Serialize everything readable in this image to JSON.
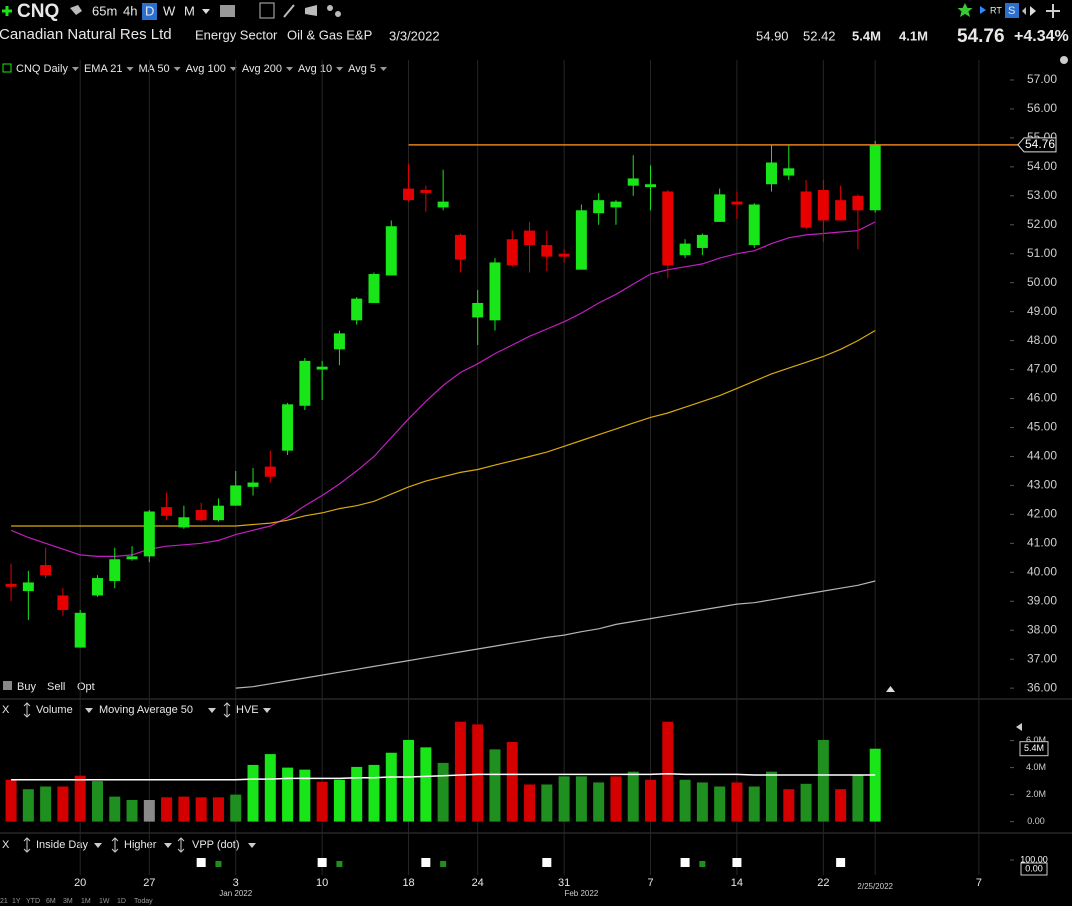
{
  "toolbar": {
    "symbol": "CNQ",
    "intervals": [
      "65m",
      "4h",
      "D",
      "W",
      "M"
    ],
    "rt": "RT",
    "s": "S"
  },
  "header": {
    "company": "Canadian Natural Res Ltd",
    "sector": "Energy Sector",
    "industry": "Oil & Gas E&P",
    "date": "3/3/2022",
    "high": "54.90",
    "low": "52.42",
    "volume": "5.4M",
    "avg_volume": "4.1M",
    "last": "54.76",
    "change": "+4.34%"
  },
  "trade_buttons": [
    "Buy",
    "Sell",
    "Opt"
  ],
  "ranges": [
    "21",
    "1Y",
    "YTD",
    "6M",
    "3M",
    "1M",
    "1W",
    "1D",
    "Today"
  ],
  "chart_data": [
    {
      "type": "candlestick",
      "name": "CNQ Daily",
      "up_color": "#19e619",
      "down_color": "#e60000",
      "grid": "x",
      "xlim": [
        -0.64,
        57.8
      ],
      "xticks": [
        {
          "value": 4,
          "label": "20"
        },
        {
          "value": 8,
          "label": "27"
        },
        {
          "value": 13,
          "label": "3"
        },
        {
          "value": 18,
          "label": "10"
        },
        {
          "value": 23,
          "label": "18"
        },
        {
          "value": 27,
          "label": "24"
        },
        {
          "value": 32,
          "label": "31"
        },
        {
          "value": 37,
          "label": "7"
        },
        {
          "value": 42,
          "label": "14"
        },
        {
          "value": 47,
          "label": "22"
        },
        {
          "value": 50,
          "label": "2/25/2022"
        },
        {
          "value": 56,
          "label": "7"
        }
      ],
      "month_labels": [
        {
          "value": 13,
          "label": "Jan 2022"
        },
        {
          "value": 33,
          "label": "Feb 2022"
        }
      ],
      "ylim": [
        35.59,
        57.69
      ],
      "yticks": [
        {
          "value": 36,
          "label": "36.00"
        },
        {
          "value": 37,
          "label": "37.00"
        },
        {
          "value": 38,
          "label": "38.00"
        },
        {
          "value": 39,
          "label": "39.00"
        },
        {
          "value": 40,
          "label": "40.00"
        },
        {
          "value": 41,
          "label": "41.00"
        },
        {
          "value": 42,
          "label": "42.00"
        },
        {
          "value": 43,
          "label": "43.00"
        },
        {
          "value": 44,
          "label": "44.00"
        },
        {
          "value": 45,
          "label": "45.00"
        },
        {
          "value": 46,
          "label": "46.00"
        },
        {
          "value": 47,
          "label": "47.00"
        },
        {
          "value": 48,
          "label": "48.00"
        },
        {
          "value": 49,
          "label": "49.00"
        },
        {
          "value": 50,
          "label": "50.00"
        },
        {
          "value": 51,
          "label": "51.00"
        },
        {
          "value": 52,
          "label": "52.00"
        },
        {
          "value": 53,
          "label": "53.00"
        },
        {
          "value": 54,
          "label": "54.00"
        },
        {
          "value": 55,
          "label": "55.00"
        },
        {
          "value": 56,
          "label": "56.00"
        },
        {
          "value": 57,
          "label": "57.00"
        }
      ],
      "open": [
        39.6,
        39.35,
        40.25,
        39.2,
        37.4,
        39.2,
        39.7,
        40.45,
        40.55,
        42.25,
        41.55,
        42.15,
        41.8,
        42.3,
        42.95,
        43.65,
        44.2,
        45.75,
        47.0,
        47.7,
        48.7,
        49.3,
        50.25,
        53.25,
        53.2,
        52.6,
        51.65,
        48.8,
        48.7,
        51.5,
        51.8,
        51.3,
        51.0,
        50.45,
        52.4,
        52.6,
        53.35,
        53.3,
        53.15,
        50.95,
        51.2,
        52.1,
        52.8,
        51.3,
        53.4,
        53.7,
        53.15,
        53.2,
        52.85,
        53.0,
        52.5
      ],
      "high": [
        40.3,
        40.05,
        40.85,
        39.45,
        38.7,
        39.9,
        40.85,
        40.9,
        42.15,
        42.75,
        42.3,
        42.4,
        42.55,
        43.5,
        43.6,
        44.2,
        45.85,
        47.4,
        47.3,
        48.35,
        49.5,
        50.35,
        52.15,
        54.1,
        53.35,
        53.9,
        51.7,
        49.75,
        50.85,
        51.8,
        52.1,
        51.8,
        51.15,
        52.7,
        53.1,
        52.85,
        54.4,
        54.05,
        53.2,
        51.5,
        51.7,
        53.25,
        53.15,
        52.75,
        54.75,
        54.75,
        53.55,
        53.55,
        53.35,
        53.05,
        54.9
      ],
      "low": [
        39.0,
        38.35,
        39.8,
        38.5,
        37.4,
        39.15,
        39.45,
        40.4,
        40.35,
        41.8,
        41.5,
        41.75,
        41.75,
        42.3,
        42.65,
        43.1,
        44.05,
        45.6,
        45.95,
        47.15,
        48.55,
        49.3,
        50.25,
        52.8,
        52.45,
        52.5,
        50.35,
        47.85,
        48.35,
        50.55,
        50.35,
        50.4,
        50.7,
        50.45,
        52.0,
        52.0,
        53.0,
        52.5,
        50.15,
        50.85,
        50.95,
        52.1,
        52.2,
        51.2,
        53.15,
        53.55,
        51.85,
        51.4,
        52.15,
        51.15,
        52.42
      ],
      "close": [
        39.5,
        39.65,
        39.9,
        38.7,
        38.6,
        39.8,
        40.45,
        40.55,
        42.1,
        41.95,
        41.9,
        41.8,
        42.3,
        43.0,
        43.1,
        43.3,
        45.8,
        47.3,
        47.1,
        48.25,
        49.45,
        50.3,
        51.95,
        52.85,
        53.1,
        52.8,
        50.8,
        49.3,
        50.7,
        50.6,
        51.3,
        50.9,
        50.9,
        52.5,
        52.85,
        52.8,
        53.6,
        53.4,
        50.6,
        51.35,
        51.65,
        53.05,
        52.7,
        52.7,
        54.15,
        53.95,
        51.9,
        52.15,
        52.15,
        52.5,
        54.76
      ],
      "studies": [
        {
          "name": "EMA 21",
          "color": "#c21fc2",
          "values": [
            41.45,
            41.2,
            41.0,
            40.8,
            40.6,
            40.55,
            40.55,
            40.6,
            40.8,
            40.9,
            40.95,
            41.0,
            41.1,
            41.3,
            41.45,
            41.6,
            41.9,
            42.3,
            42.65,
            43.05,
            43.5,
            44.0,
            44.65,
            45.3,
            45.9,
            46.45,
            46.9,
            47.2,
            47.55,
            47.85,
            48.15,
            48.4,
            48.65,
            48.95,
            49.3,
            49.6,
            49.95,
            50.3,
            50.45,
            50.55,
            50.65,
            50.85,
            51.0,
            51.1,
            51.35,
            51.55,
            51.65,
            51.7,
            51.75,
            51.8,
            52.1
          ]
        },
        {
          "name": "MA 50",
          "color": "#d9a90c",
          "values": [
            41.6,
            41.6,
            41.6,
            41.6,
            41.6,
            41.6,
            41.6,
            41.6,
            41.6,
            41.6,
            41.6,
            41.6,
            41.6,
            41.6,
            41.65,
            41.7,
            41.8,
            41.95,
            42.05,
            42.2,
            42.3,
            42.45,
            42.7,
            42.95,
            43.15,
            43.3,
            43.45,
            43.55,
            43.7,
            43.85,
            44.0,
            44.15,
            44.35,
            44.55,
            44.75,
            44.95,
            45.15,
            45.35,
            45.5,
            45.7,
            45.9,
            46.1,
            46.35,
            46.6,
            46.85,
            47.05,
            47.25,
            47.45,
            47.7,
            48.0,
            48.35
          ]
        },
        {
          "name": "Avg 100",
          "color": "#e5801c"
        },
        {
          "name": "Avg 200",
          "color": "#b5b5b5",
          "values": [
            null,
            null,
            null,
            null,
            null,
            null,
            null,
            null,
            null,
            null,
            null,
            null,
            null,
            36.0,
            36.05,
            36.15,
            36.25,
            36.35,
            36.45,
            36.55,
            36.65,
            36.75,
            36.85,
            36.95,
            37.05,
            37.15,
            37.25,
            37.35,
            37.45,
            37.55,
            37.65,
            37.75,
            37.83,
            37.95,
            38.05,
            38.2,
            38.3,
            38.4,
            38.5,
            38.6,
            38.7,
            38.8,
            38.9,
            38.95,
            39.05,
            39.15,
            39.25,
            39.35,
            39.45,
            39.55,
            39.7
          ]
        },
        {
          "name": "Avg 10",
          "color": "#d7a6f2"
        },
        {
          "name": "Avg 5",
          "color": "#1d9c9c"
        }
      ],
      "last_price": 54.76,
      "level_color": "#e5801c"
    },
    {
      "type": "bar",
      "name": "Volume",
      "name_color": "#19c819",
      "ylim": [
        -0.4,
        7.6
      ],
      "yticks": [
        {
          "value": 0,
          "label": "0.00"
        },
        {
          "value": 2,
          "label": "2.0M"
        },
        {
          "value": 4,
          "label": "4.0M"
        },
        {
          "value": 6,
          "label": "6.0M"
        }
      ],
      "current": {
        "value": 5.4,
        "label": "5.4M"
      },
      "values": [
        3.1,
        2.4,
        2.6,
        2.6,
        3.4,
        3.0,
        1.85,
        1.6,
        1.6,
        1.8,
        1.85,
        1.8,
        1.8,
        2.0,
        4.2,
        5.0,
        4.0,
        3.85,
        2.95,
        3.1,
        4.05,
        4.2,
        5.1,
        6.05,
        5.5,
        4.35,
        7.4,
        7.2,
        5.35,
        5.9,
        2.75,
        2.75,
        3.35,
        3.35,
        2.9,
        3.35,
        3.7,
        3.1,
        7.4,
        3.1,
        2.9,
        2.6,
        2.9,
        2.6,
        3.7,
        2.4,
        2.8,
        6.05,
        2.4,
        3.45,
        5.4
      ],
      "colors": [
        "#d40000",
        "#1f8f1f",
        "#1f8f1f",
        "#d40000",
        "#d40000",
        "#1f8f1f",
        "#1f8f1f",
        "#1f8f1f",
        "#8a8a8a",
        "#d40000",
        "#d40000",
        "#d40000",
        "#d40000",
        "#1f8f1f",
        "#19e619",
        "#19e619",
        "#19e619",
        "#19e619",
        "#d40000",
        "#19e619",
        "#19e619",
        "#19e619",
        "#19e619",
        "#19e619",
        "#19e619",
        "#1f8f1f",
        "#d40000",
        "#d40000",
        "#1f8f1f",
        "#d40000",
        "#d40000",
        "#1f8f1f",
        "#1f8f1f",
        "#1f8f1f",
        "#1f8f1f",
        "#d40000",
        "#1f8f1f",
        "#d40000",
        "#d40000",
        "#1f8f1f",
        "#1f8f1f",
        "#1f8f1f",
        "#d40000",
        "#1f8f1f",
        "#1f8f1f",
        "#d40000",
        "#1f8f1f",
        "#1f8f1f",
        "#d40000",
        "#1f8f1f",
        "#19e619"
      ],
      "average": {
        "name": "Moving Average 50",
        "color": "#ffffff",
        "values": [
          3.1,
          3.1,
          3.1,
          3.1,
          3.1,
          3.1,
          3.1,
          3.1,
          3.1,
          3.1,
          3.1,
          3.1,
          3.1,
          3.1,
          3.15,
          3.15,
          3.2,
          3.2,
          3.2,
          3.2,
          3.25,
          3.25,
          3.3,
          3.3,
          3.35,
          3.4,
          3.45,
          3.5,
          3.5,
          3.5,
          3.5,
          3.5,
          3.5,
          3.5,
          3.5,
          3.5,
          3.5,
          3.5,
          3.55,
          3.5,
          3.5,
          3.5,
          3.5,
          3.45,
          3.45,
          3.45,
          3.45,
          3.45,
          3.45,
          3.45,
          3.45
        ]
      },
      "study": "HVE",
      "close_button": "X"
    },
    {
      "type": "signals",
      "ylim": [
        0,
        100
      ],
      "yticks": [
        {
          "value": 100,
          "label": "100.00"
        },
        {
          "value": 0,
          "label": "0.00"
        }
      ],
      "series": [
        {
          "name": "Inside Day",
          "color": "#ffffff",
          "x": [
            11,
            18,
            24,
            31,
            39,
            42,
            48
          ]
        },
        {
          "name": "Higher",
          "color": "#1f8f1f",
          "x": [
            12,
            19,
            25,
            40
          ]
        }
      ],
      "study": "VPP (dot)",
      "close_button": "X"
    }
  ]
}
